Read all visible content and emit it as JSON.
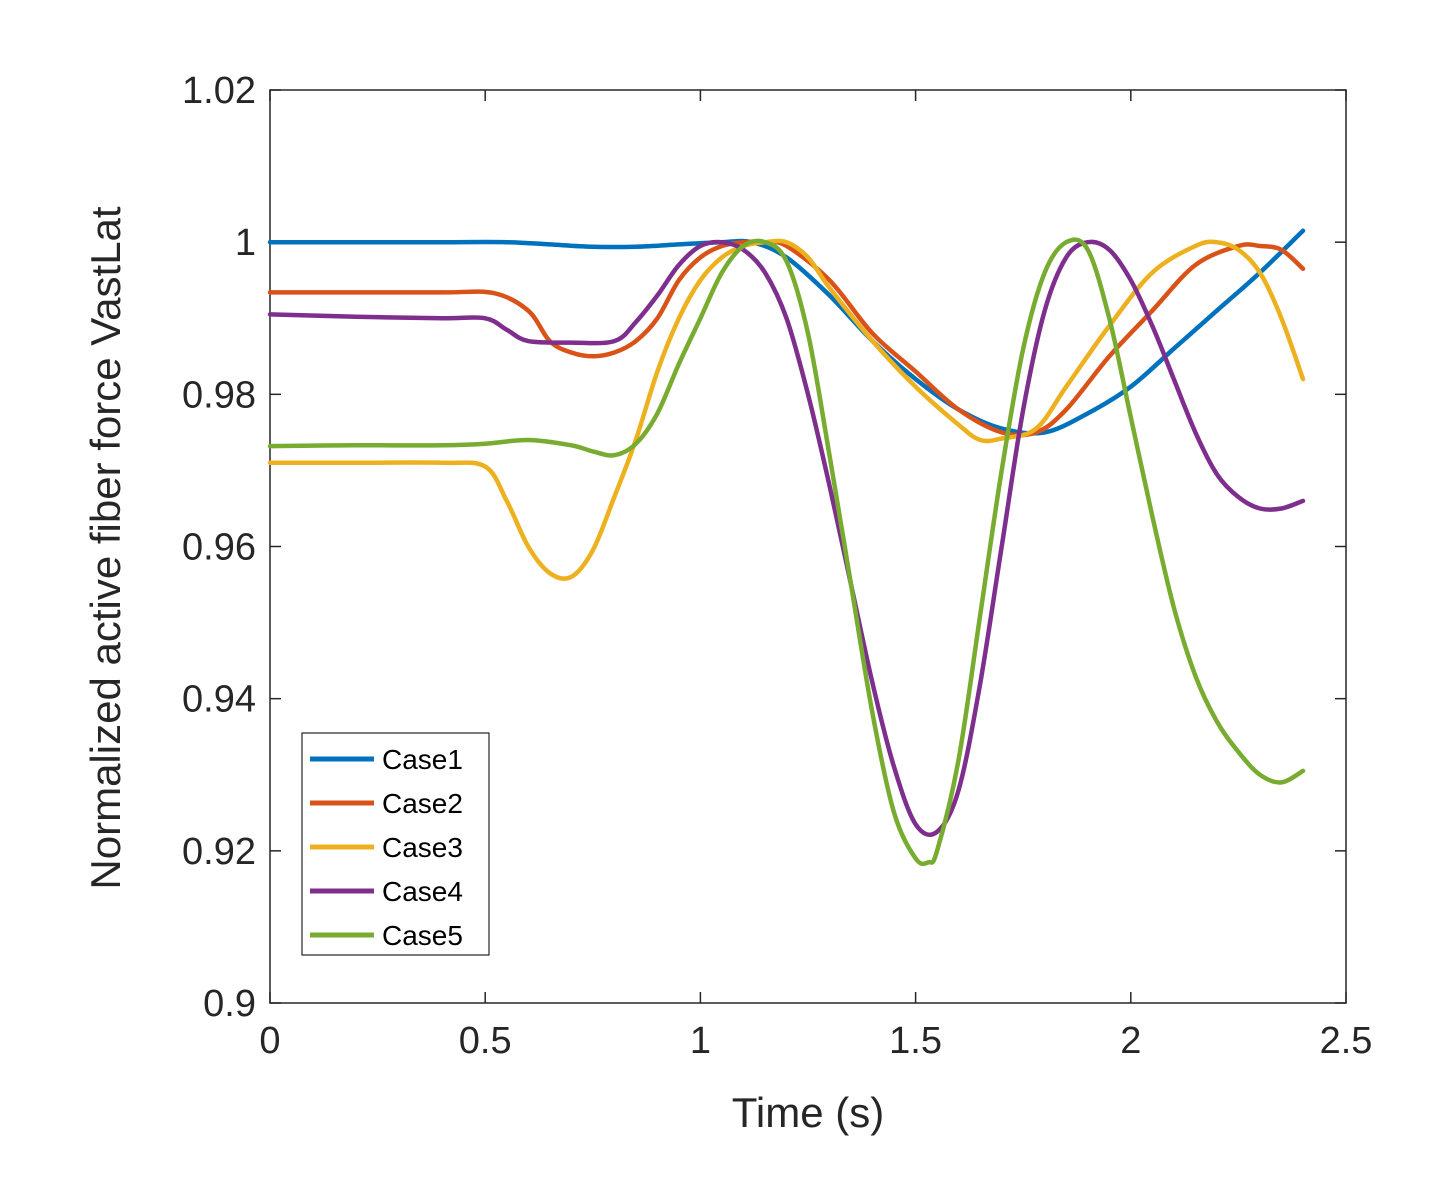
{
  "chart_data": {
    "type": "line",
    "title": "",
    "xlabel": "Time (s)",
    "ylabel": "Normalized active fiber force  VastLat",
    "xlim": [
      0,
      2.5
    ],
    "ylim": [
      0.9,
      1.02
    ],
    "xticks": [
      0,
      0.5,
      1,
      1.5,
      2,
      2.5
    ],
    "xtick_labels": [
      "0",
      "0.5",
      "1",
      "1.5",
      "2",
      "2.5"
    ],
    "yticks": [
      0.9,
      0.92,
      0.94,
      0.96,
      0.98,
      1.0,
      1.02
    ],
    "ytick_labels": [
      "0.9",
      "0.92",
      "0.94",
      "0.96",
      "0.98",
      "1",
      "1.02"
    ],
    "grid": false,
    "legend_position": "bottom-left",
    "series": [
      {
        "name": "Case1",
        "color": "#0072BD",
        "points": [
          [
            0,
            1.0
          ],
          [
            0.2,
            1.0
          ],
          [
            0.4,
            1.0
          ],
          [
            0.55,
            1.0
          ],
          [
            0.65,
            0.9997
          ],
          [
            0.75,
            0.9994
          ],
          [
            0.85,
            0.9994
          ],
          [
            0.95,
            0.9997
          ],
          [
            1.05,
            1.0
          ],
          [
            1.12,
            1.0
          ],
          [
            1.2,
            0.998
          ],
          [
            1.3,
            0.993
          ],
          [
            1.4,
            0.987
          ],
          [
            1.5,
            0.982
          ],
          [
            1.6,
            0.978
          ],
          [
            1.7,
            0.9755
          ],
          [
            1.8,
            0.975
          ],
          [
            1.9,
            0.9775
          ],
          [
            2.0,
            0.981
          ],
          [
            2.1,
            0.986
          ],
          [
            2.2,
            0.991
          ],
          [
            2.3,
            0.996
          ],
          [
            2.4,
            1.0015
          ]
        ]
      },
      {
        "name": "Case2",
        "color": "#D95319",
        "points": [
          [
            0,
            0.9934
          ],
          [
            0.2,
            0.9934
          ],
          [
            0.4,
            0.9934
          ],
          [
            0.52,
            0.9933
          ],
          [
            0.6,
            0.991
          ],
          [
            0.65,
            0.987
          ],
          [
            0.7,
            0.9855
          ],
          [
            0.75,
            0.985
          ],
          [
            0.8,
            0.9855
          ],
          [
            0.85,
            0.987
          ],
          [
            0.9,
            0.99
          ],
          [
            0.95,
            0.995
          ],
          [
            1.0,
            0.998
          ],
          [
            1.05,
            0.9995
          ],
          [
            1.1,
            1.0
          ],
          [
            1.15,
            1.0
          ],
          [
            1.2,
            0.9995
          ],
          [
            1.3,
            0.995
          ],
          [
            1.4,
            0.988
          ],
          [
            1.5,
            0.983
          ],
          [
            1.6,
            0.978
          ],
          [
            1.7,
            0.975
          ],
          [
            1.78,
            0.975
          ],
          [
            1.85,
            0.978
          ],
          [
            1.95,
            0.985
          ],
          [
            2.05,
            0.991
          ],
          [
            2.15,
            0.997
          ],
          [
            2.25,
            0.9995
          ],
          [
            2.3,
            0.9995
          ],
          [
            2.35,
            0.999
          ],
          [
            2.4,
            0.9965
          ]
        ]
      },
      {
        "name": "Case3",
        "color": "#EDB120",
        "points": [
          [
            0,
            0.971
          ],
          [
            0.2,
            0.971
          ],
          [
            0.4,
            0.971
          ],
          [
            0.5,
            0.9705
          ],
          [
            0.55,
            0.966
          ],
          [
            0.6,
            0.96
          ],
          [
            0.65,
            0.9565
          ],
          [
            0.7,
            0.956
          ],
          [
            0.75,
            0.9595
          ],
          [
            0.8,
            0.9665
          ],
          [
            0.85,
            0.974
          ],
          [
            0.9,
            0.983
          ],
          [
            0.95,
            0.99
          ],
          [
            1.0,
            0.995
          ],
          [
            1.05,
            0.998
          ],
          [
            1.1,
            0.9995
          ],
          [
            1.15,
            1.0
          ],
          [
            1.2,
            1.0
          ],
          [
            1.25,
            0.998
          ],
          [
            1.3,
            0.994
          ],
          [
            1.4,
            0.987
          ],
          [
            1.5,
            0.981
          ],
          [
            1.6,
            0.976
          ],
          [
            1.65,
            0.974
          ],
          [
            1.7,
            0.9742
          ],
          [
            1.78,
            0.9755
          ],
          [
            1.85,
            0.981
          ],
          [
            1.95,
            0.989
          ],
          [
            2.05,
            0.996
          ],
          [
            2.15,
            0.9995
          ],
          [
            2.2,
            1.0
          ],
          [
            2.25,
            0.999
          ],
          [
            2.3,
            0.996
          ],
          [
            2.35,
            0.99
          ],
          [
            2.4,
            0.982
          ]
        ]
      },
      {
        "name": "Case4",
        "color": "#7E2F8E",
        "points": [
          [
            0,
            0.9905
          ],
          [
            0.2,
            0.9902
          ],
          [
            0.4,
            0.99
          ],
          [
            0.5,
            0.99
          ],
          [
            0.55,
            0.9885
          ],
          [
            0.6,
            0.987
          ],
          [
            0.7,
            0.9868
          ],
          [
            0.8,
            0.987
          ],
          [
            0.85,
            0.9895
          ],
          [
            0.9,
            0.993
          ],
          [
            0.95,
            0.997
          ],
          [
            1.0,
            0.9995
          ],
          [
            1.05,
            1.0
          ],
          [
            1.1,
            0.999
          ],
          [
            1.15,
            0.996
          ],
          [
            1.2,
            0.99
          ],
          [
            1.25,
            0.98
          ],
          [
            1.3,
            0.968
          ],
          [
            1.35,
            0.955
          ],
          [
            1.4,
            0.942
          ],
          [
            1.45,
            0.931
          ],
          [
            1.5,
            0.9235
          ],
          [
            1.55,
            0.9225
          ],
          [
            1.6,
            0.928
          ],
          [
            1.65,
            0.942
          ],
          [
            1.7,
            0.96
          ],
          [
            1.75,
            0.978
          ],
          [
            1.8,
            0.991
          ],
          [
            1.85,
            0.998
          ],
          [
            1.9,
            1.0
          ],
          [
            1.95,
            0.999
          ],
          [
            2.0,
            0.995
          ],
          [
            2.05,
            0.989
          ],
          [
            2.1,
            0.982
          ],
          [
            2.15,
            0.975
          ],
          [
            2.2,
            0.9695
          ],
          [
            2.25,
            0.9665
          ],
          [
            2.3,
            0.965
          ],
          [
            2.35,
            0.965
          ],
          [
            2.4,
            0.966
          ]
        ]
      },
      {
        "name": "Case5",
        "color": "#77AC30",
        "points": [
          [
            0,
            0.9732
          ],
          [
            0.2,
            0.9733
          ],
          [
            0.4,
            0.9733
          ],
          [
            0.5,
            0.9735
          ],
          [
            0.6,
            0.974
          ],
          [
            0.7,
            0.9733
          ],
          [
            0.75,
            0.9725
          ],
          [
            0.8,
            0.972
          ],
          [
            0.85,
            0.9735
          ],
          [
            0.9,
            0.9775
          ],
          [
            0.95,
            0.984
          ],
          [
            1.0,
            0.99
          ],
          [
            1.05,
            0.996
          ],
          [
            1.1,
            0.9995
          ],
          [
            1.15,
            1.0
          ],
          [
            1.2,
            0.9975
          ],
          [
            1.25,
            0.988
          ],
          [
            1.3,
            0.972
          ],
          [
            1.35,
            0.955
          ],
          [
            1.4,
            0.938
          ],
          [
            1.45,
            0.925
          ],
          [
            1.5,
            0.919
          ],
          [
            1.53,
            0.9185
          ],
          [
            1.55,
            0.92
          ],
          [
            1.6,
            0.932
          ],
          [
            1.65,
            0.951
          ],
          [
            1.7,
            0.97
          ],
          [
            1.75,
            0.986
          ],
          [
            1.8,
            0.996
          ],
          [
            1.85,
            1.0
          ],
          [
            1.9,
            0.999
          ],
          [
            1.95,
            0.99
          ],
          [
            2.0,
            0.977
          ],
          [
            2.05,
            0.964
          ],
          [
            2.1,
            0.952
          ],
          [
            2.15,
            0.943
          ],
          [
            2.2,
            0.937
          ],
          [
            2.25,
            0.933
          ],
          [
            2.3,
            0.93
          ],
          [
            2.35,
            0.929
          ],
          [
            2.4,
            0.9305
          ]
        ]
      }
    ]
  }
}
